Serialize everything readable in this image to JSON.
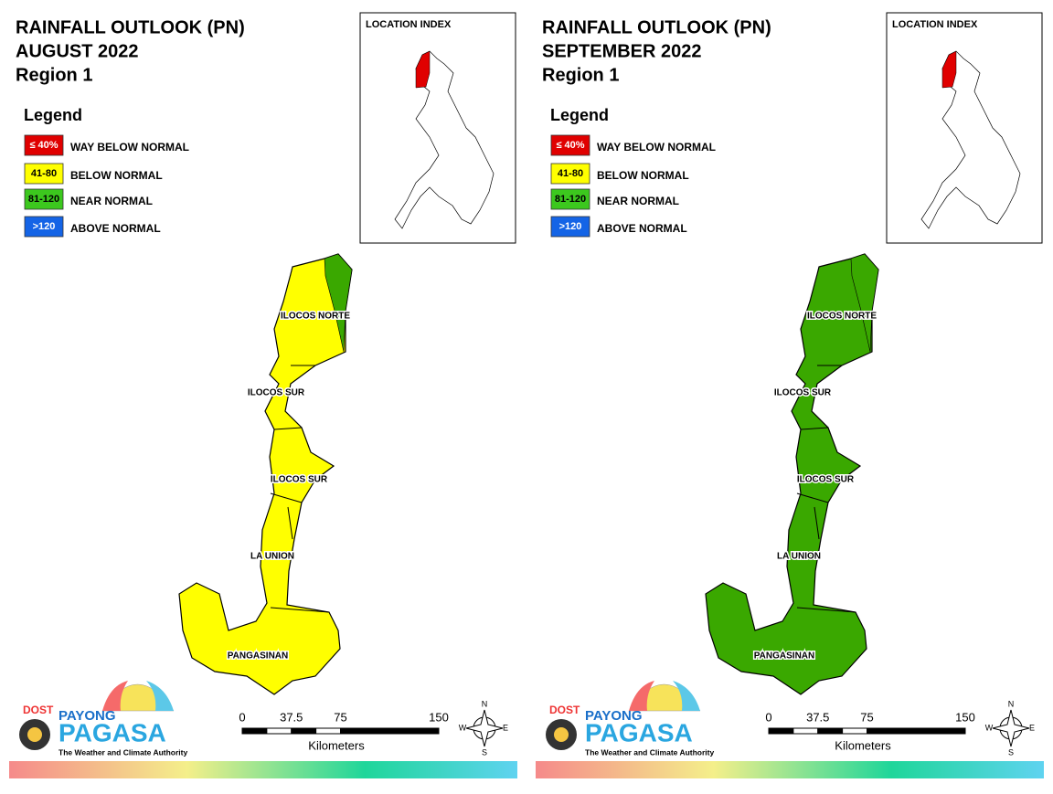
{
  "panels": [
    {
      "title": [
        "RAINFALL OUTLOOK (PN)",
        "AUGUST 2022",
        "Region 1"
      ],
      "fill": "#ffff00",
      "accent": "#3aa800",
      "provinces": [
        "ILOCOS NORTE",
        "ILOCOS SUR",
        "ILOCOS SUR",
        "LA UNION",
        "PANGASINAN"
      ]
    },
    {
      "title": [
        "RAINFALL OUTLOOK (PN)",
        "SEPTEMBER 2022",
        "Region 1"
      ],
      "fill": "#3aa800",
      "accent": "#3aa800",
      "provinces": [
        "ILOCOS NORTE",
        "ILOCOS SUR",
        "ILOCOS SUR",
        "LA UNION",
        "PANGASINAN"
      ]
    }
  ],
  "location_index": "LOCATION INDEX",
  "legend": {
    "title": "Legend",
    "items": [
      {
        "range": "≤ 40%",
        "label": "WAY BELOW NORMAL",
        "color": "#e00000"
      },
      {
        "range": "41-80",
        "label": "BELOW NORMAL",
        "color": "#ffff00"
      },
      {
        "range": "81-120",
        "label": "NEAR NORMAL",
        "color": "#3cc81e"
      },
      {
        "range": ">120",
        "label": "ABOVE NORMAL",
        "color": "#1464e6"
      }
    ]
  },
  "scale": {
    "ticks": [
      0,
      37.5,
      75,
      150
    ],
    "unit": "Kilometers"
  },
  "compass": [
    "N",
    "E",
    "S",
    "W"
  ],
  "logo": {
    "dost": "DOST",
    "payong": "PAYONG",
    "pagasa": "PAGASA",
    "tagline": "The Weather and Climate Authority"
  }
}
